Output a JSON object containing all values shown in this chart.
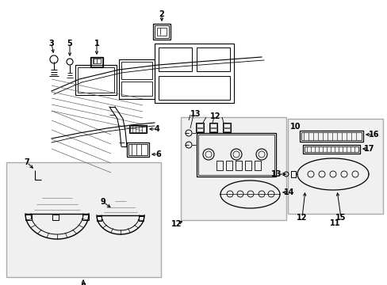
{
  "bg_color": "#ffffff",
  "fig_width": 4.89,
  "fig_height": 3.6,
  "dpi": 100,
  "components": {
    "label_fontsize": 7,
    "dash_color": "#000000",
    "box_fill": "#f0f0f0"
  }
}
